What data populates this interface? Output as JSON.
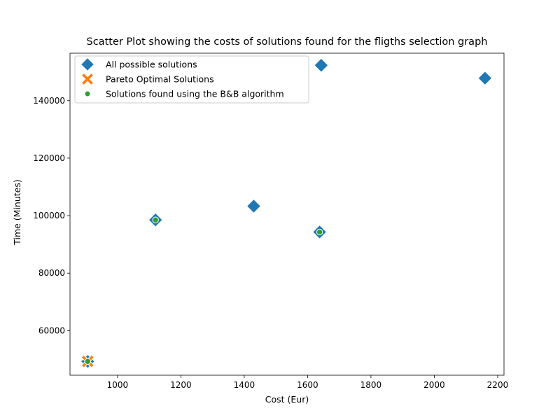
{
  "chart_data": {
    "type": "scatter",
    "title": "Scatter Plot showing the costs of solutions found for the fligths selection graph",
    "xlabel": "Cost (Eur)",
    "ylabel": "Time (Minutes)",
    "xlim": [
      850,
      2220
    ],
    "ylim": [
      44500,
      156500
    ],
    "xticks": [
      1000,
      1200,
      1400,
      1600,
      1800,
      2000,
      2200
    ],
    "yticks": [
      60000,
      80000,
      100000,
      120000,
      140000
    ],
    "grid": false,
    "legend_position": "top-left",
    "series": [
      {
        "name": "All possible solutions",
        "marker": "diamond",
        "color": "#1f77b4",
        "points": [
          {
            "x": 1120,
            "y": 98500
          },
          {
            "x": 1430,
            "y": 103300
          },
          {
            "x": 1643,
            "y": 152300
          },
          {
            "x": 2160,
            "y": 147800
          },
          {
            "x": 1638,
            "y": 94300
          },
          {
            "x": 906,
            "y": 49300
          }
        ]
      },
      {
        "name": "Pareto Optimal Solutions",
        "marker": "x",
        "color": "#ff7f0e",
        "points": [
          {
            "x": 906,
            "y": 49300
          }
        ]
      },
      {
        "name": "Solutions found using the B&B algorithm",
        "marker": "circle",
        "color": "#2ca02c",
        "points": [
          {
            "x": 1120,
            "y": 98500
          },
          {
            "x": 1638,
            "y": 94300
          },
          {
            "x": 906,
            "y": 49300
          }
        ]
      }
    ]
  }
}
